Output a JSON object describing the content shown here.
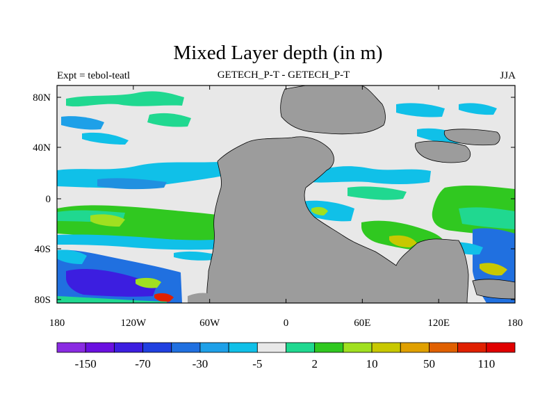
{
  "title": "Mixed Layer depth (in m)",
  "left_label": "Expt = tebol-teatl",
  "center_label": "GETECH_P-T - GETECH_P-T",
  "right_label": "JJA",
  "x_ticks": [
    "180",
    "120W",
    "60W",
    "0",
    "60E",
    "120E",
    "180"
  ],
  "y_ticks": [
    "80N",
    "40N",
    "0",
    "40S",
    "80S"
  ],
  "colorbar": {
    "colors": [
      "#8a2be2",
      "#6a10e0",
      "#3c1ee0",
      "#2040e0",
      "#2070e0",
      "#1ea0e8",
      "#10c0e8",
      "#e8e8e8",
      "#20d890",
      "#30c820",
      "#a0e020",
      "#c8c800",
      "#e0a000",
      "#e06000",
      "#e02000",
      "#e00000"
    ],
    "labels": [
      "-150",
      "-70",
      "-30",
      "-5",
      "2",
      "10",
      "50",
      "110"
    ]
  },
  "colors": {
    "land": "#9c9c9c",
    "ocean_neutral": "#e8e8e8"
  }
}
